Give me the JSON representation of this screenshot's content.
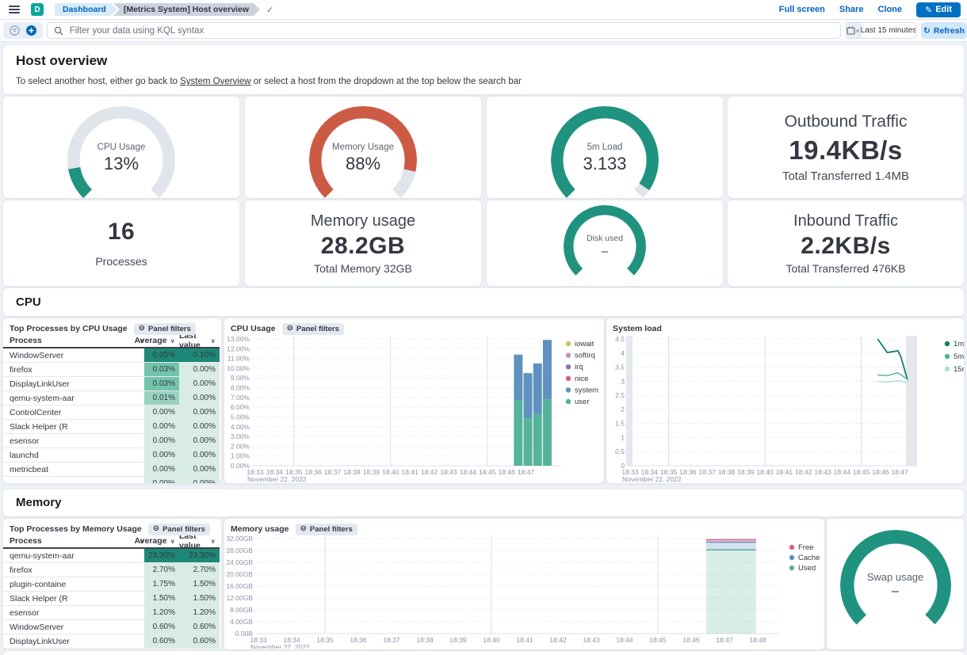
{
  "topnav": {
    "logo_letter": "D",
    "breadcrumbs": [
      {
        "label": "Dashboard"
      },
      {
        "label": "[Metrics System] Host overview"
      }
    ],
    "actions": [
      {
        "label": "Full screen"
      },
      {
        "label": "Share"
      },
      {
        "label": "Clone"
      }
    ],
    "edit_label": "Edit",
    "edit_icon": "✎",
    "saved_check": "✓"
  },
  "querybar": {
    "placeholder": "Filter your data using KQL syntax",
    "time_range": "Last 15 minutes",
    "refresh_label": "Refresh",
    "refresh_icon": "↻"
  },
  "page_header": {
    "title": "Host overview",
    "subtitle_prefix": "To select another host, either go back to ",
    "link_text": "System Overview",
    "subtitle_suffix": " or select a host from the dropdown at the top below the search bar"
  },
  "sections": {
    "cpu": "CPU",
    "memory": "Memory"
  },
  "panel_filter_label": "Panel filters",
  "colors": {
    "accent_teal": "#209280",
    "accent_red": "#CC5B45",
    "gauge_track": "#E0E4EB",
    "link_blue": "#0061C2",
    "primary_button": "#0071C2"
  },
  "cell_shades": {
    "dark": "#1E8877",
    "mid": "#74C4AC",
    "mid2": "#97D2C0",
    "light": "#D8ECE4"
  },
  "stat_cards": {
    "cpu_gauge": {
      "label": "CPU Usage",
      "value": "13%",
      "percent": 13,
      "color": "#209280"
    },
    "memory_gauge": {
      "label": "Memory Usage",
      "value": "88%",
      "percent": 88,
      "color": "#CC5B45"
    },
    "load_gauge": {
      "label": "5m Load",
      "value": "3.133",
      "percent": 96,
      "color": "#209280"
    },
    "outbound": {
      "title": "Outbound Traffic",
      "value": "19.4KB/s",
      "subtitle": "Total Transferred 1.4MB"
    },
    "processes": {
      "value": "16",
      "label": "Processes"
    },
    "memory_usage": {
      "title": "Memory usage",
      "value": "28.2GB",
      "subtitle": "Total Memory 32GB"
    },
    "disk_gauge": {
      "label": "Disk used",
      "value": "–",
      "percent": 100,
      "color": "#209280"
    },
    "inbound": {
      "title": "Inbound Traffic",
      "value": "2.2KB/s",
      "subtitle": "Total Transferred 476KB"
    },
    "swap_gauge": {
      "label": "Swap usage",
      "value": "–",
      "percent": 100,
      "color": "#209280"
    }
  },
  "cpu_table": {
    "title": "Top Processes by CPU Usage",
    "columns": [
      "Process",
      "Average",
      "Last value"
    ],
    "rows": [
      {
        "process": "WindowServer",
        "avg": "0.05%",
        "last": "0.10%",
        "avg_shade": "dark",
        "last_shade": "dark"
      },
      {
        "process": "firefox",
        "avg": "0.03%",
        "last": "0.00%",
        "avg_shade": "mid",
        "last_shade": "light"
      },
      {
        "process": "DisplayLinkUser",
        "avg": "0.03%",
        "last": "0.00%",
        "avg_shade": "mid",
        "last_shade": "light"
      },
      {
        "process": "qemu-system-aar",
        "avg": "0.01%",
        "last": "0.00%",
        "avg_shade": "mid2",
        "last_shade": "light"
      },
      {
        "process": "ControlCenter",
        "avg": "0.00%",
        "last": "0.00%",
        "avg_shade": "light",
        "last_shade": "light"
      },
      {
        "process": "Slack Helper (R",
        "avg": "0.00%",
        "last": "0.00%",
        "avg_shade": "light",
        "last_shade": "light"
      },
      {
        "process": "esensor",
        "avg": "0.00%",
        "last": "0.00%",
        "avg_shade": "light",
        "last_shade": "light"
      },
      {
        "process": "launchd",
        "avg": "0.00%",
        "last": "0.00%",
        "avg_shade": "light",
        "last_shade": "light"
      },
      {
        "process": "metricbeat",
        "avg": "0.00%",
        "last": "0.00%",
        "avg_shade": "light",
        "last_shade": "light"
      },
      {
        "process": "",
        "avg": "0.00%",
        "last": "0.00%",
        "avg_shade": "light",
        "last_shade": "light"
      }
    ]
  },
  "memory_table": {
    "title": "Top Processes by Memory Usage",
    "columns": [
      "Process",
      "Average",
      "Last value"
    ],
    "rows": [
      {
        "process": "qemu-system-aar",
        "avg": "23.30%",
        "last": "23.30%",
        "avg_shade": "dark",
        "last_shade": "dark"
      },
      {
        "process": "firefox",
        "avg": "2.70%",
        "last": "2.70%",
        "avg_shade": "light",
        "last_shade": "light"
      },
      {
        "process": "plugin-containe",
        "avg": "1.75%",
        "last": "1.50%",
        "avg_shade": "light",
        "last_shade": "light"
      },
      {
        "process": "Slack Helper (R",
        "avg": "1.50%",
        "last": "1.50%",
        "avg_shade": "light",
        "last_shade": "light"
      },
      {
        "process": "esensor",
        "avg": "1.20%",
        "last": "1.20%",
        "avg_shade": "light",
        "last_shade": "light"
      },
      {
        "process": "WindowServer",
        "avg": "0.60%",
        "last": "0.60%",
        "avg_shade": "light",
        "last_shade": "light"
      },
      {
        "process": "DisplayLinkUser",
        "avg": "0.60%",
        "last": "0.60%",
        "avg_shade": "light",
        "last_shade": "light"
      }
    ]
  },
  "chart_data": [
    {
      "id": "cpu-usage",
      "type": "bar",
      "stacked": true,
      "title": "CPU Usage",
      "x_ticks": [
        "18:33",
        "18:34",
        "18:35",
        "18:36",
        "18:37",
        "18:38",
        "18:39",
        "18:40",
        "18:41",
        "18:42",
        "18:43",
        "18:44",
        "18:45",
        "18:46",
        "18:47"
      ],
      "x_date": "November 22, 2022",
      "y_ticks": [
        "13.00%",
        "12.00%",
        "11.00%",
        "10.00%",
        "9.00%",
        "8.00%",
        "7.00%",
        "6.00%",
        "5.00%",
        "4.00%",
        "3.00%",
        "2.00%",
        "1.00%",
        "0.00%"
      ],
      "ylim": [
        0,
        13
      ],
      "grid_verticals": [
        2,
        7,
        12
      ],
      "legend": [
        {
          "label": "iowait",
          "color": "#D6BF57"
        },
        {
          "label": "softirq",
          "color": "#CA8EAE"
        },
        {
          "label": "irq",
          "color": "#9170B8"
        },
        {
          "label": "nice",
          "color": "#D36086"
        },
        {
          "label": "system",
          "color": "#6092C0"
        },
        {
          "label": "user",
          "color": "#54B399"
        }
      ],
      "bars": [
        {
          "t": 13.6,
          "user": 6.7,
          "system": 4.7
        },
        {
          "t": 14.1,
          "user": 4.9,
          "system": 4.6
        },
        {
          "t": 14.6,
          "user": 5.3,
          "system": 5.2
        },
        {
          "t": 15.1,
          "user": 6.8,
          "system": 6.1
        }
      ]
    },
    {
      "id": "system-load",
      "type": "line",
      "title": "System load",
      "x_ticks": [
        "18:33",
        "18:34",
        "18:35",
        "18:36",
        "18:37",
        "18:38",
        "18:39",
        "18:40",
        "18:41",
        "18:42",
        "18:43",
        "18:44",
        "18:45",
        "18:46",
        "18:47"
      ],
      "x_date": "November 22, 2022",
      "y_ticks": [
        "4.5",
        "4",
        "3.5",
        "3",
        "2.5",
        "2",
        "1.5",
        "1",
        "0.5",
        "0"
      ],
      "ylim": [
        0,
        4.5
      ],
      "grid_verticals": [
        2,
        7,
        12
      ],
      "legend": [
        {
          "label": "1m",
          "color": "#157F72"
        },
        {
          "label": "5m",
          "color": "#54B399"
        },
        {
          "label": "15m",
          "color": "#AEDFCF"
        }
      ],
      "series": [
        {
          "name": "1m",
          "color": "#157F72",
          "points": [
            [
              12.85,
              4.5
            ],
            [
              13.35,
              4.02
            ],
            [
              13.9,
              4.08
            ],
            [
              14.05,
              3.88
            ],
            [
              14.4,
              3.05
            ]
          ]
        },
        {
          "name": "5m",
          "color": "#54B399",
          "points": [
            [
              12.85,
              3.22
            ],
            [
              13.35,
              3.2
            ],
            [
              13.9,
              3.3
            ],
            [
              14.4,
              3.07
            ]
          ]
        },
        {
          "name": "15m",
          "color": "#AEDFCF",
          "points": [
            [
              12.85,
              3.0
            ],
            [
              13.35,
              2.97
            ],
            [
              13.9,
              3.02
            ],
            [
              14.4,
              2.97
            ]
          ]
        }
      ]
    },
    {
      "id": "memory-usage",
      "type": "bar",
      "stacked": true,
      "title": "Memory usage",
      "x_ticks": [
        "18:33",
        "18:34",
        "18:35",
        "18:36",
        "18:37",
        "18:38",
        "18:39",
        "18:40",
        "18:41",
        "18:42",
        "18:43",
        "18:44",
        "18:45",
        "18:46",
        "18:47",
        "18:48"
      ],
      "x_date": "November 22, 2022",
      "y_ticks": [
        "32.00GB",
        "28.00GB",
        "24.00GB",
        "20.00GB",
        "16.00GB",
        "12.00GB",
        "8.00GB",
        "4.00GB",
        "0.00B"
      ],
      "ylim_gb": [
        0,
        32
      ],
      "grid_verticals": [
        2,
        7,
        12
      ],
      "legend": [
        {
          "label": "Free",
          "color": "#D36086"
        },
        {
          "label": "Cache",
          "color": "#6092C0"
        },
        {
          "label": "Used",
          "color": "#54B399"
        }
      ],
      "bar": {
        "t0": 13.45,
        "t1": 14.95,
        "used_gb": 28.2,
        "cache_gb": 2.6,
        "free_gb": 0.8
      }
    }
  ]
}
